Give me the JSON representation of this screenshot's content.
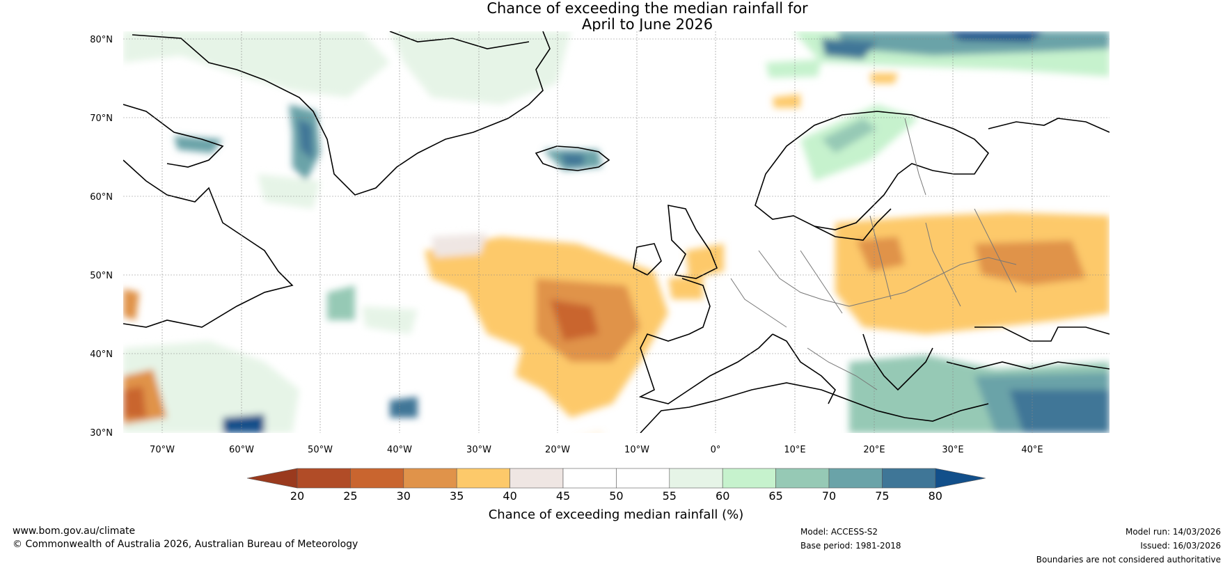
{
  "title_line1": "Chance of exceeding the median rainfall for",
  "title_line2": "April to June 2026",
  "lat_labels": [
    "80°N",
    "70°N",
    "60°N",
    "50°N",
    "40°N",
    "30°N"
  ],
  "lon_labels": [
    "70°W",
    "60°W",
    "50°W",
    "40°W",
    "30°W",
    "20°W",
    "10°W",
    "0°",
    "10°E",
    "20°E",
    "30°E",
    "40°E"
  ],
  "colorbar": {
    "ticks": [
      "20",
      "25",
      "30",
      "35",
      "40",
      "45",
      "50",
      "55",
      "60",
      "65",
      "70",
      "75",
      "80"
    ],
    "title": "Chance of exceeding median rainfall (%)",
    "colors": [
      "#9a3a1e",
      "#b14c27",
      "#c9652f",
      "#e0934a",
      "#fdc96a",
      "#efe6e3",
      "#ffffff",
      "#ffffff",
      "#e6f4e7",
      "#c6f2cd",
      "#96c9b5",
      "#6aa3a8",
      "#3f7697",
      "#124f8a"
    ]
  },
  "footer": {
    "website": "www.bom.gov.au/climate",
    "copyright": "© Commonwealth of Australia 2026, Australian Bureau of Meteorology",
    "model": "Model: ACCESS-S2",
    "base_period": "Base period: 1981-2018",
    "model_run": "Model run: 14/03/2026",
    "issued": "Issued: 16/03/2026",
    "disclaimer": "Boundaries are not considered authoritative"
  }
}
